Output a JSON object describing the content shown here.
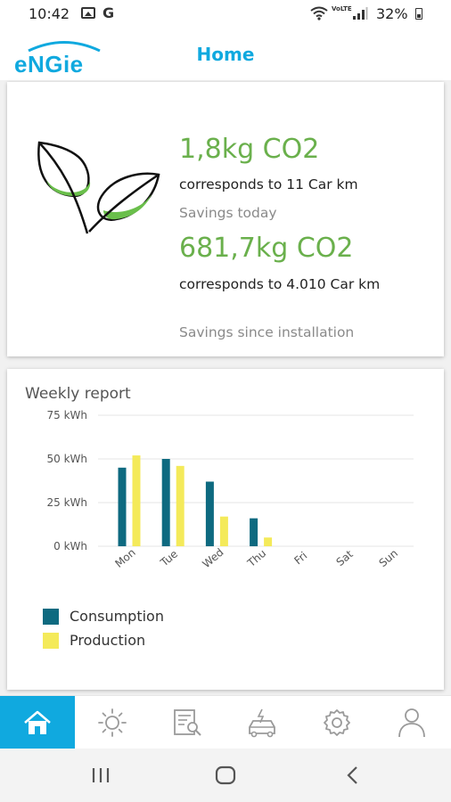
{
  "status_bar": {
    "time": "10:42",
    "g_icon": "G",
    "volte": "VoLTE",
    "battery": "32%"
  },
  "header": {
    "logo_text": "eNGie",
    "title": "Home"
  },
  "savings": {
    "today_value": "1,8kg CO2",
    "today_desc": "corresponds to 11 Car km",
    "today_label": "Savings today",
    "total_value": "681,7kg CO2",
    "total_desc": "corresponds to 4.010 Car km",
    "total_label": "Savings since installation",
    "accent_color": "#6ab04c"
  },
  "report": {
    "title": "Weekly report"
  },
  "chart_data": {
    "type": "bar",
    "categories": [
      "Mon",
      "Tue",
      "Wed",
      "Thu",
      "Fri",
      "Sat",
      "Sun"
    ],
    "series": [
      {
        "name": "Consumption",
        "color": "#0e6a80",
        "values": [
          45,
          50,
          37,
          16,
          0,
          0,
          0
        ]
      },
      {
        "name": "Production",
        "color": "#f4ea5a",
        "values": [
          52,
          46,
          17,
          5,
          0,
          0,
          0
        ]
      }
    ],
    "y_ticks": [
      "75 kWh",
      "50 kWh",
      "25 kWh",
      "0 kWh"
    ],
    "y_tick_values": [
      75,
      50,
      25,
      0
    ],
    "ylim": [
      0,
      75
    ],
    "grid": true,
    "legend_position": "bottom-left"
  },
  "bottom_nav": {
    "items": [
      {
        "icon": "home-icon",
        "active": true
      },
      {
        "icon": "sun-icon",
        "active": false
      },
      {
        "icon": "report-search-icon",
        "active": false
      },
      {
        "icon": "car-charging-icon",
        "active": false
      },
      {
        "icon": "gear-icon",
        "active": false
      },
      {
        "icon": "user-icon",
        "active": false
      }
    ],
    "active_color": "#10a9df"
  },
  "brand_color": "#10a9df"
}
